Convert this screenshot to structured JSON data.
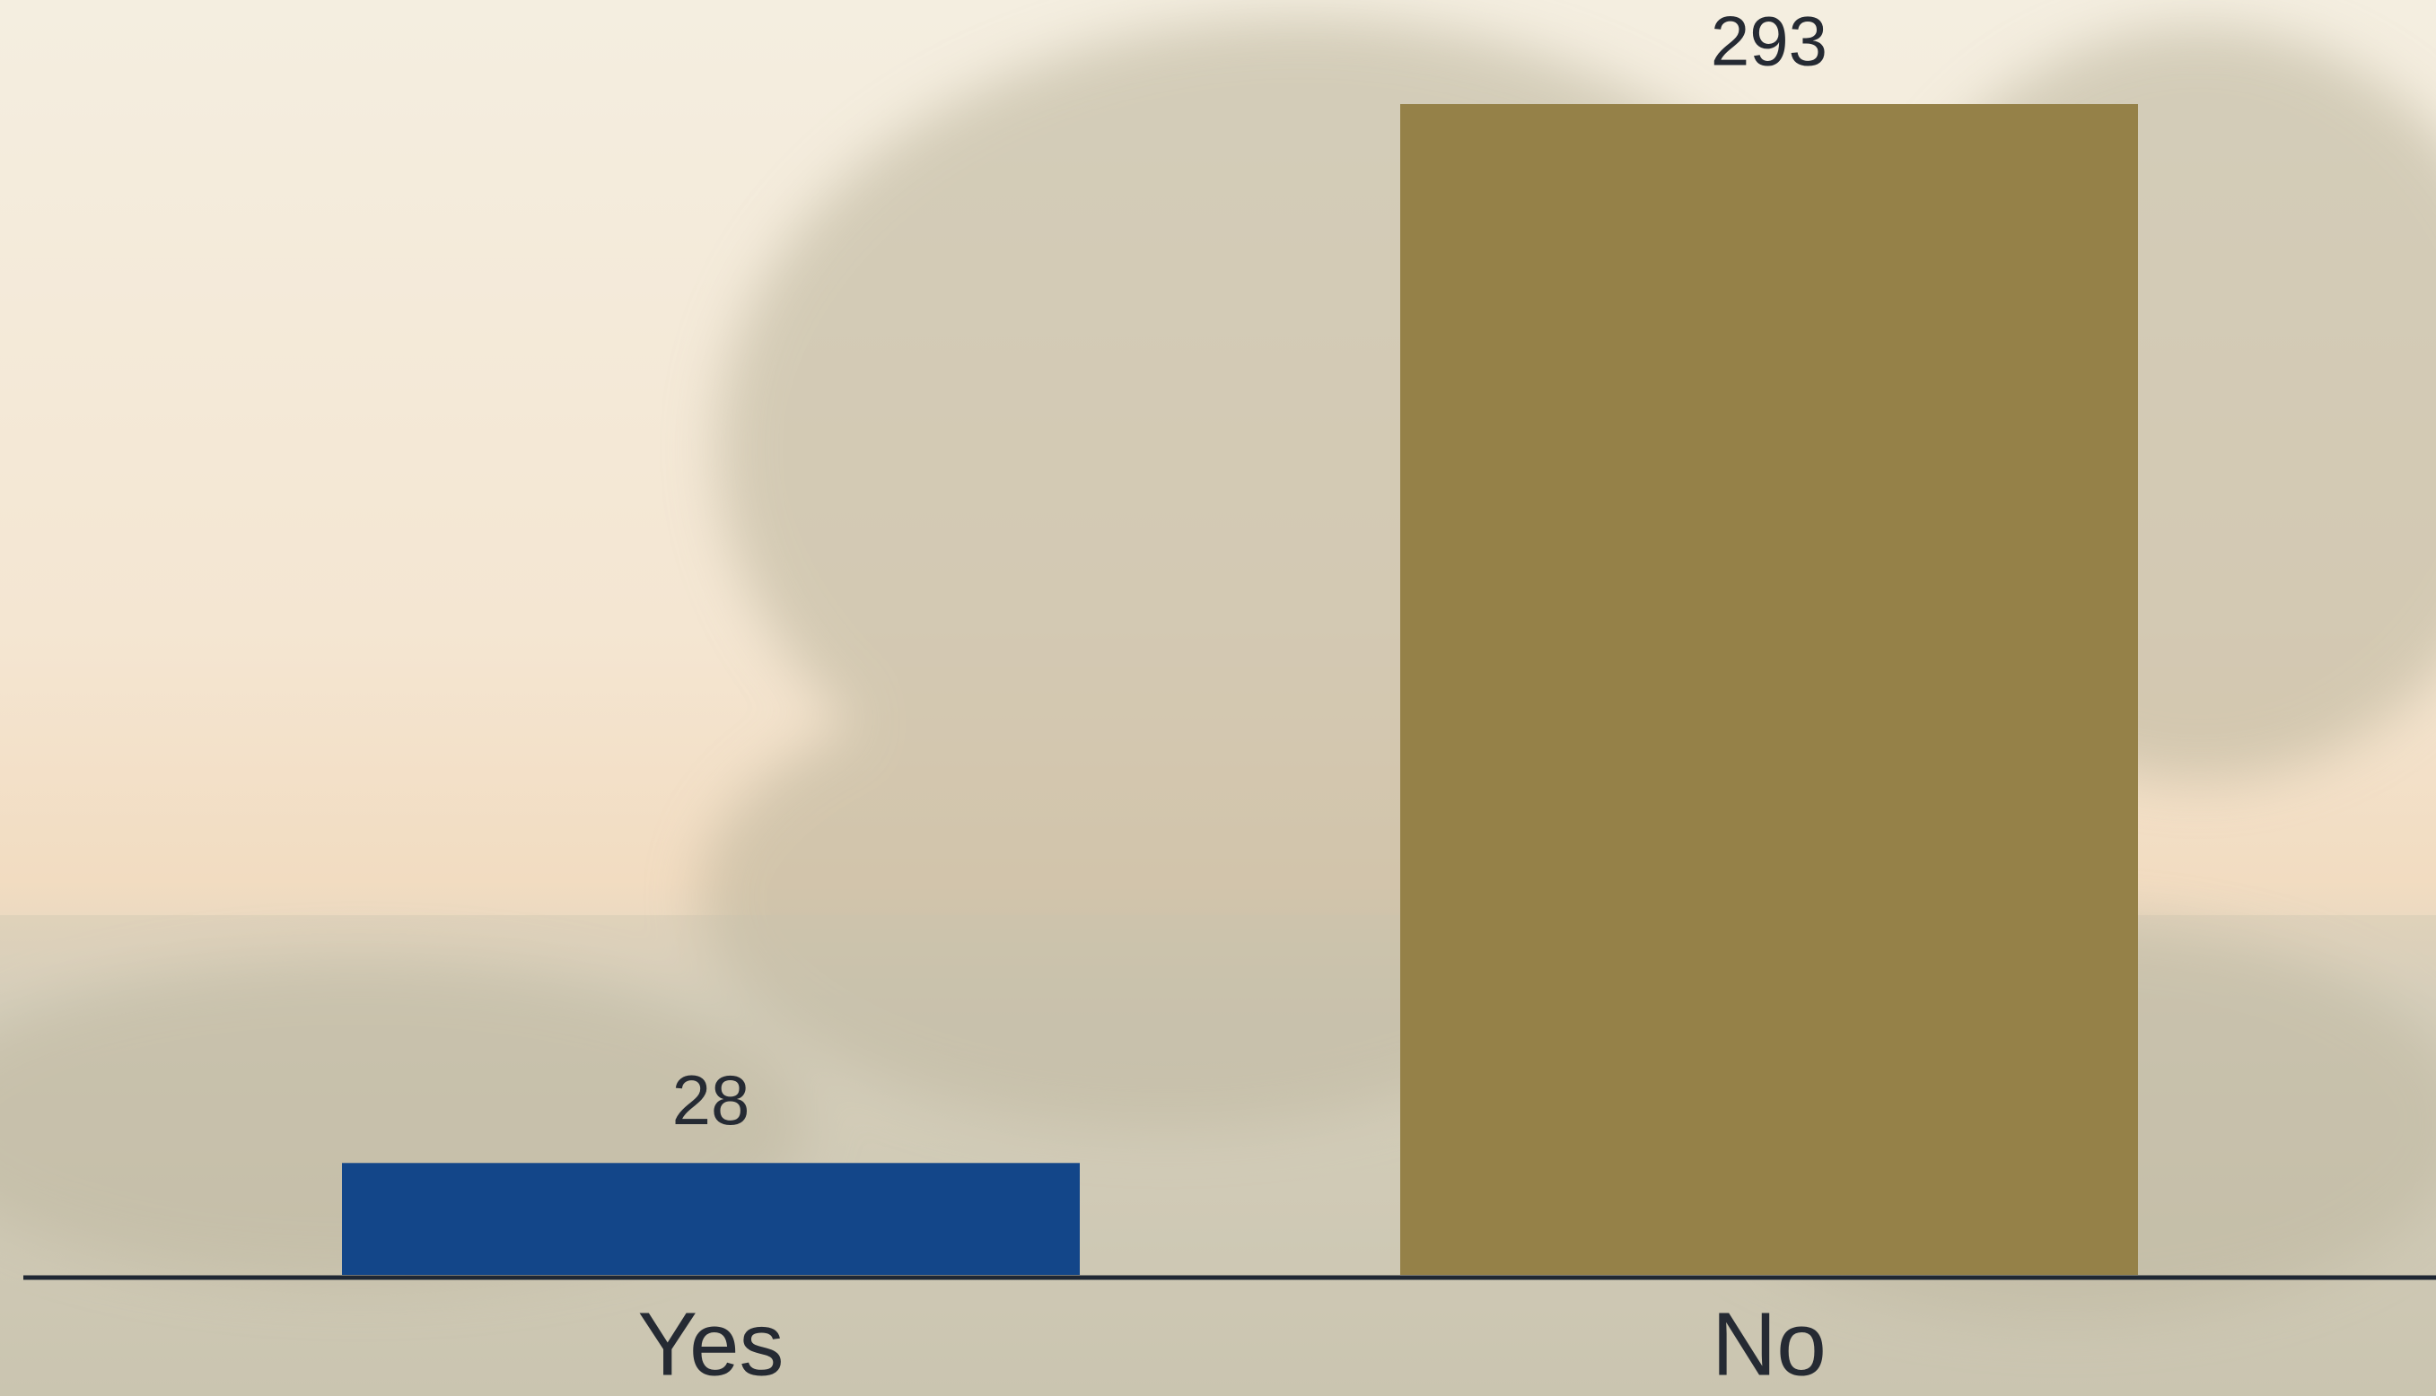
{
  "chart_data": {
    "type": "bar",
    "categories": [
      "Yes",
      "No"
    ],
    "values": [
      28,
      293
    ],
    "colors": [
      "#134689",
      "#958148"
    ]
  }
}
